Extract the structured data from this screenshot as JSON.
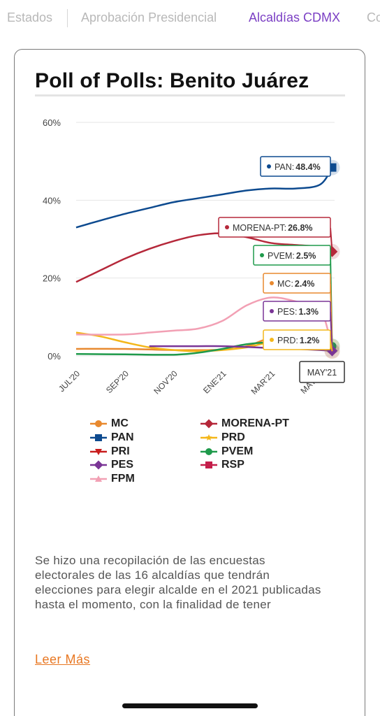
{
  "tabs": [
    {
      "label": "Estados",
      "active": false
    },
    {
      "label": "Aprobación Presidencial",
      "active": false
    },
    {
      "label": "Alcaldías CDMX",
      "active": true
    },
    {
      "label": "Co",
      "active": false
    }
  ],
  "card": {
    "title": "Poll of Polls: Benito Juárez",
    "description": "Se hizo una recopilación de las encuestas electorales de las 16 alcaldías que tendrán elecciones para elegir alcalde en el 2021 publicadas hasta el momento, con la finalidad de tener",
    "read_more": "Leer Más"
  },
  "chart_data": {
    "type": "line",
    "ylim": [
      0,
      60
    ],
    "yticks": [
      0,
      20,
      40,
      60
    ],
    "ytick_labels": [
      "0%",
      "20%",
      "40%",
      "60%"
    ],
    "xticks": [
      0,
      2,
      4,
      6,
      8,
      10
    ],
    "xtick_labels": [
      "JUL'20",
      "SEP'20",
      "NOV'20",
      "ENE'21",
      "MAR'21",
      "MAY'21"
    ],
    "xlim": [
      0,
      10.6
    ],
    "grid": true,
    "legend_position": "bottom",
    "hover_label": "MAY'21",
    "series": [
      {
        "name": "MC",
        "color": "#e8892f",
        "marker": "circle",
        "x": [
          0,
          2,
          4,
          6,
          7,
          8,
          9,
          10,
          10.5
        ],
        "y": [
          1.8,
          1.8,
          1.5,
          1.6,
          2.5,
          4.5,
          3.5,
          2.6,
          2.4
        ],
        "tooltip": "2.4%"
      },
      {
        "name": "MORENA-PT",
        "color": "#b5283a",
        "marker": "diamond",
        "x": [
          0,
          1,
          2,
          3,
          4,
          5,
          6,
          7,
          8,
          9,
          10,
          10.5
        ],
        "y": [
          19,
          22,
          25,
          27.5,
          29.5,
          31,
          31.5,
          30.5,
          29,
          28.5,
          28,
          26.8
        ],
        "tooltip": "26.8%"
      },
      {
        "name": "PAN",
        "color": "#0d4a8f",
        "marker": "square",
        "x": [
          0,
          1,
          2,
          3,
          4,
          5,
          6,
          7,
          8,
          9,
          10,
          10.5
        ],
        "y": [
          33,
          34.8,
          36.5,
          38,
          39.5,
          40.5,
          41.5,
          42.5,
          43,
          43,
          44,
          48.4
        ],
        "tooltip": "48.4%"
      },
      {
        "name": "PRD",
        "color": "#f4b71a",
        "marker": "star",
        "x": [
          0,
          1,
          2,
          3,
          4,
          5,
          6,
          7,
          8,
          9,
          10,
          10.5
        ],
        "y": [
          6,
          5,
          3.5,
          2.2,
          1.5,
          1.2,
          1.5,
          2.2,
          3.5,
          3,
          1.8,
          1.2
        ],
        "tooltip": "1.2%"
      },
      {
        "name": "PRI",
        "color": "#c81d1d",
        "marker": "triangle-down",
        "x": [],
        "y": [],
        "tooltip": ""
      },
      {
        "name": "PVEM",
        "color": "#1f9a4b",
        "marker": "circle",
        "x": [
          0,
          2,
          4,
          5,
          6,
          7,
          8,
          9,
          10,
          10.5
        ],
        "y": [
          0.5,
          0.4,
          0.3,
          0.8,
          1.8,
          3,
          3.5,
          3.2,
          3,
          2.5
        ],
        "tooltip": "2.5%"
      },
      {
        "name": "PES",
        "color": "#7a3596",
        "marker": "diamond",
        "x": [
          3,
          4,
          5,
          6,
          7,
          8,
          9,
          10,
          10.5
        ],
        "y": [
          2.5,
          2.5,
          2.5,
          2.5,
          2.3,
          2,
          1.8,
          1.5,
          1.3
        ],
        "tooltip": "1.3%"
      },
      {
        "name": "RSP",
        "color": "#c41e4a",
        "marker": "square",
        "x": [],
        "y": [],
        "tooltip": ""
      },
      {
        "name": "FPM",
        "color": "#f2a0b4",
        "marker": "triangle-up",
        "x": [
          0,
          2,
          3,
          4,
          5,
          6,
          7,
          8,
          9,
          10,
          10.5
        ],
        "y": [
          5.5,
          5.5,
          6,
          6.5,
          7,
          9,
          13,
          15,
          14,
          12,
          2
        ],
        "tooltip": ""
      }
    ]
  }
}
